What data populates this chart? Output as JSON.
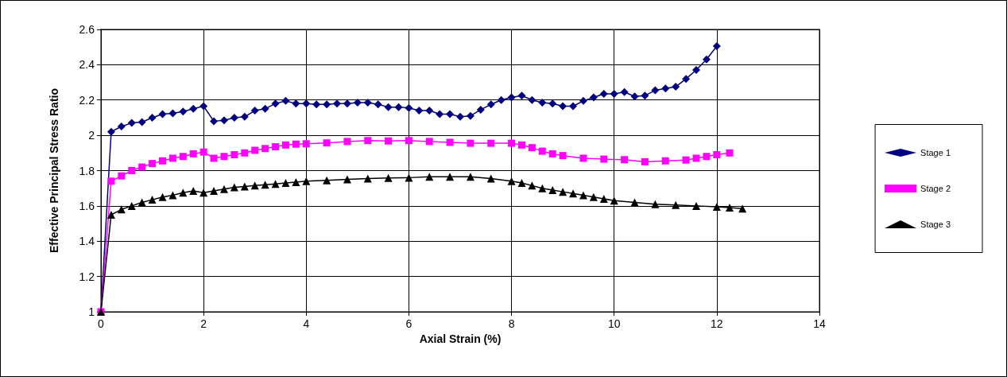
{
  "chart_data": {
    "type": "line",
    "xlabel": "Axial Strain (%)",
    "ylabel": "Effective Principal Stress Ratio",
    "xlim": [
      0,
      14
    ],
    "xticks": [
      0,
      2,
      4,
      6,
      8,
      10,
      12,
      14
    ],
    "ylim": [
      1,
      2.6
    ],
    "yticks": [
      1,
      1.2,
      1.4,
      1.6,
      1.8,
      2,
      2.2,
      2.4,
      2.6
    ],
    "grid": true,
    "legend": "right",
    "series": [
      {
        "name": "Stage 1",
        "color": "#000080",
        "marker": "diamond",
        "x": [
          0,
          0.2,
          0.4,
          0.6,
          0.8,
          1.0,
          1.2,
          1.4,
          1.6,
          1.8,
          2.0,
          2.2,
          2.4,
          2.6,
          2.8,
          3.0,
          3.2,
          3.4,
          3.6,
          3.8,
          4.0,
          4.2,
          4.4,
          4.6,
          4.8,
          5.0,
          5.2,
          5.4,
          5.6,
          5.8,
          6.0,
          6.2,
          6.4,
          6.6,
          6.8,
          7.0,
          7.2,
          7.4,
          7.6,
          7.8,
          8.0,
          8.2,
          8.4,
          8.6,
          8.8,
          9.0,
          9.2,
          9.4,
          9.6,
          9.8,
          10.0,
          10.2,
          10.4,
          10.6,
          10.8,
          11.0,
          11.2,
          11.4,
          11.6,
          11.8,
          12.0
        ],
        "values": [
          1.0,
          2.02,
          2.05,
          2.07,
          2.075,
          2.1,
          2.12,
          2.125,
          2.135,
          2.15,
          2.165,
          2.08,
          2.085,
          2.1,
          2.105,
          2.14,
          2.15,
          2.18,
          2.195,
          2.18,
          2.18,
          2.175,
          2.175,
          2.18,
          2.18,
          2.185,
          2.185,
          2.175,
          2.16,
          2.16,
          2.155,
          2.14,
          2.14,
          2.12,
          2.12,
          2.105,
          2.11,
          2.145,
          2.175,
          2.2,
          2.215,
          2.225,
          2.2,
          2.185,
          2.18,
          2.165,
          2.165,
          2.195,
          2.215,
          2.235,
          2.235,
          2.245,
          2.22,
          2.225,
          2.255,
          2.265,
          2.275,
          2.32,
          2.37,
          2.43,
          2.505
        ]
      },
      {
        "name": "Stage 2",
        "color": "#ff00ff",
        "marker": "square",
        "x": [
          0,
          0.2,
          0.4,
          0.6,
          0.8,
          1.0,
          1.2,
          1.4,
          1.6,
          1.8,
          2.0,
          2.2,
          2.4,
          2.6,
          2.8,
          3.0,
          3.2,
          3.4,
          3.6,
          3.8,
          4.0,
          4.4,
          4.8,
          5.2,
          5.6,
          6.0,
          6.4,
          6.8,
          7.2,
          7.6,
          8.0,
          8.2,
          8.4,
          8.6,
          8.8,
          9.0,
          9.4,
          9.8,
          10.2,
          10.6,
          11.0,
          11.4,
          11.6,
          11.8,
          12.0,
          12.25
        ],
        "values": [
          1.0,
          1.74,
          1.77,
          1.8,
          1.82,
          1.84,
          1.855,
          1.87,
          1.88,
          1.895,
          1.905,
          1.87,
          1.88,
          1.89,
          1.9,
          1.915,
          1.925,
          1.935,
          1.945,
          1.95,
          1.952,
          1.957,
          1.965,
          1.97,
          1.968,
          1.97,
          1.965,
          1.96,
          1.955,
          1.955,
          1.955,
          1.945,
          1.93,
          1.91,
          1.895,
          1.885,
          1.87,
          1.865,
          1.862,
          1.85,
          1.855,
          1.86,
          1.87,
          1.88,
          1.89,
          1.9
        ]
      },
      {
        "name": "Stage 3",
        "color": "#000000",
        "marker": "triangle",
        "x": [
          0,
          0.2,
          0.4,
          0.6,
          0.8,
          1.0,
          1.2,
          1.4,
          1.6,
          1.8,
          2.0,
          2.2,
          2.4,
          2.6,
          2.8,
          3.0,
          3.2,
          3.4,
          3.6,
          3.8,
          4.0,
          4.4,
          4.8,
          5.2,
          5.6,
          6.0,
          6.4,
          6.8,
          7.2,
          7.6,
          8.0,
          8.2,
          8.4,
          8.6,
          8.8,
          9.0,
          9.2,
          9.4,
          9.6,
          9.8,
          10.0,
          10.4,
          10.8,
          11.2,
          11.6,
          12.0,
          12.25,
          12.5
        ],
        "values": [
          1.0,
          1.55,
          1.58,
          1.6,
          1.62,
          1.635,
          1.65,
          1.66,
          1.675,
          1.685,
          1.675,
          1.685,
          1.695,
          1.705,
          1.71,
          1.715,
          1.72,
          1.725,
          1.73,
          1.735,
          1.74,
          1.745,
          1.75,
          1.755,
          1.758,
          1.76,
          1.765,
          1.765,
          1.765,
          1.755,
          1.74,
          1.73,
          1.715,
          1.7,
          1.69,
          1.68,
          1.67,
          1.66,
          1.65,
          1.64,
          1.63,
          1.62,
          1.61,
          1.605,
          1.6,
          1.595,
          1.59,
          1.585
        ]
      }
    ]
  }
}
